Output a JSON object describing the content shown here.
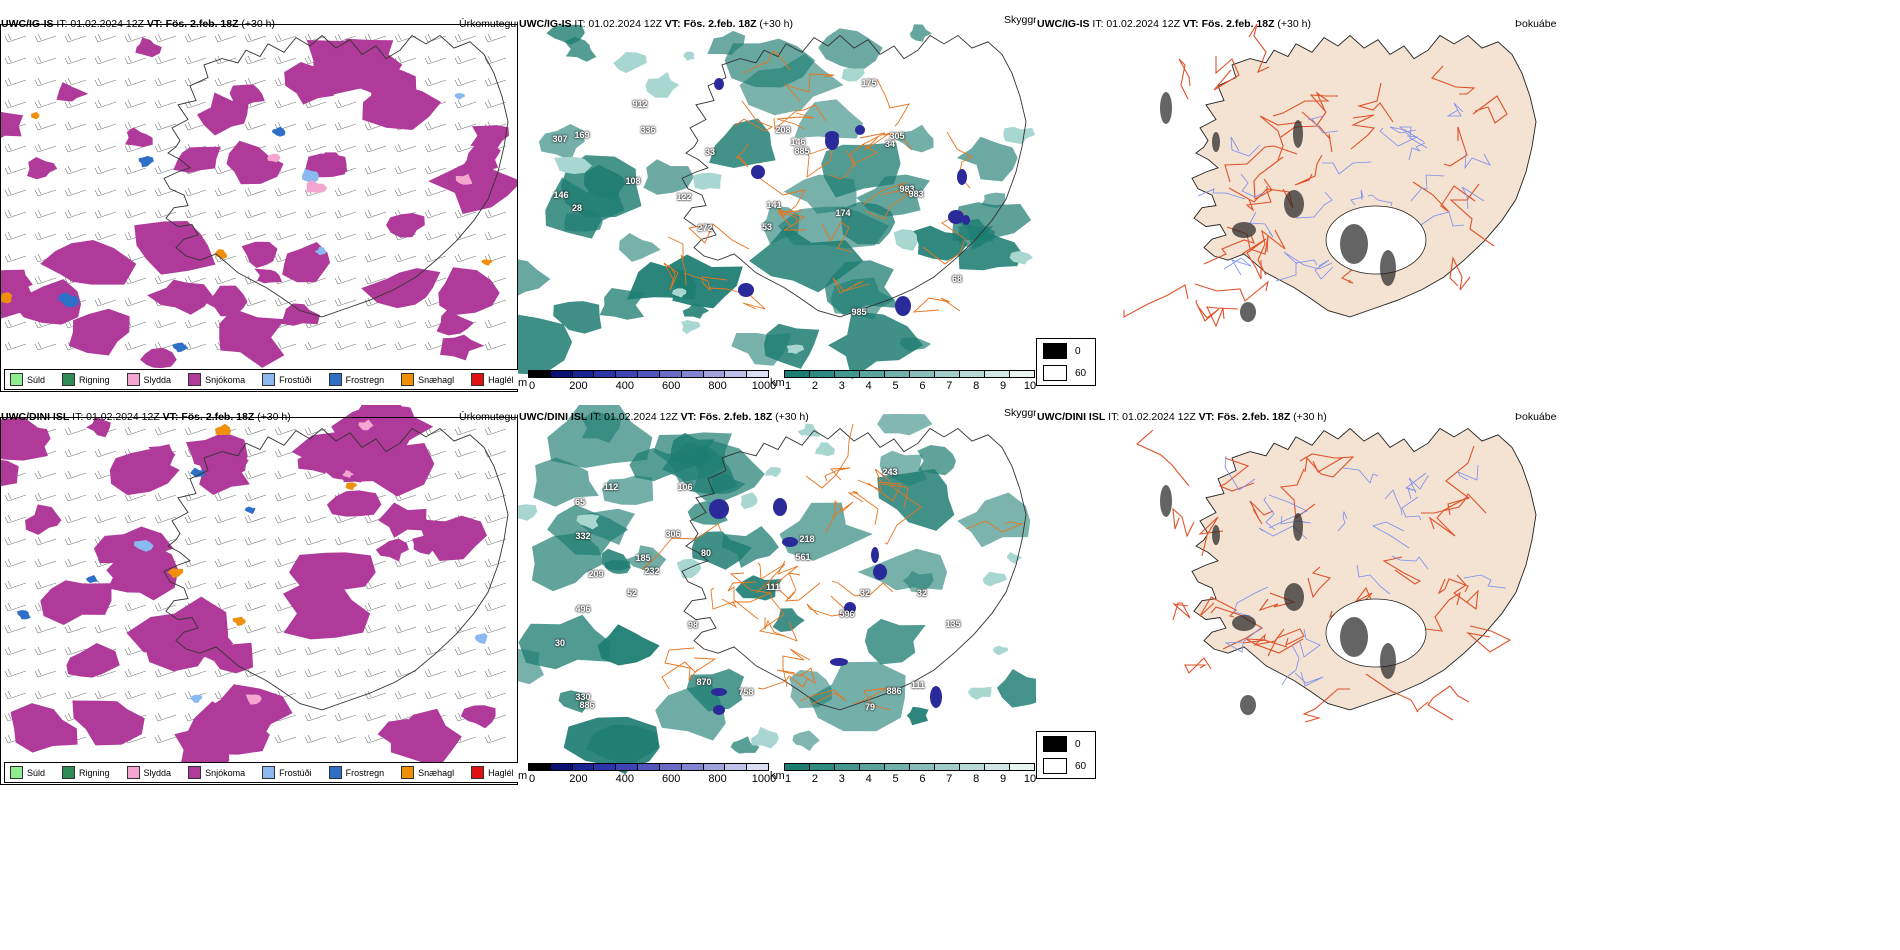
{
  "rows": [
    {
      "model": "UWC/IG-IS",
      "run": " IT: 01.02.2024 12Z ",
      "valid_label": "VT:",
      "valid": " Fös. 2.feb. 18Z",
      "lead": " (+30 h)",
      "precip": {
        "field": "Úrkomutegund"
      },
      "vis": {
        "field": "Skyggni",
        "peaks": [
          "307",
          "983",
          "985",
          "912",
          "272",
          "885",
          "305",
          "175",
          "34",
          "208",
          "141",
          "169",
          "122",
          "336",
          "174",
          "28",
          "108",
          "68",
          "33",
          "146",
          "146",
          "53",
          "983"
        ]
      },
      "fog": {
        "field": "Þokuábendi"
      }
    },
    {
      "model": "UWC/DINI ISL",
      "run": " IT: 01.02.2024 12Z ",
      "valid_label": "VT:",
      "valid": " Fös. 2.feb. 18Z",
      "lead": " (+30 h)",
      "precip": {
        "field": "Úrkomutegund"
      },
      "vis": {
        "field": "Skyggni",
        "peaks": [
          "30",
          "52",
          "561",
          "596",
          "886",
          "243",
          "135",
          "870",
          "185",
          "79",
          "112",
          "111",
          "218",
          "232",
          "306",
          "330",
          "886",
          "209",
          "98",
          "32",
          "106",
          "758",
          "332",
          "32",
          "111",
          "80",
          "65",
          "496"
        ]
      },
      "fog": {
        "field": "Þokuábendi"
      }
    }
  ],
  "precip_legend": [
    {
      "label": "Súld",
      "color": "#90ee90"
    },
    {
      "label": "Rigning",
      "color": "#2e8b57"
    },
    {
      "label": "Slydda",
      "color": "#f4a6d0"
    },
    {
      "label": "Snjókoma",
      "color": "#b03a9a"
    },
    {
      "label": "Frostúði",
      "color": "#8ab8f0"
    },
    {
      "label": "Frostregn",
      "color": "#2e6fc8"
    },
    {
      "label": "Snæhagl",
      "color": "#f0900a"
    },
    {
      "label": "Haglél",
      "color": "#e01010"
    }
  ],
  "height_bar": {
    "unit": "m",
    "ticks": [
      "0",
      "200",
      "400",
      "600",
      "800",
      "1000"
    ],
    "colors": [
      "#000000",
      "#0b1073",
      "#1a2591",
      "#2b35a8",
      "#3e44b5",
      "#5257bd",
      "#6a6cc8",
      "#8485d2",
      "#a1a2dc",
      "#c0c1e8",
      "#dcdcf2"
    ]
  },
  "km_bar": {
    "unit": "km",
    "ticks": [
      "1",
      "2",
      "3",
      "4",
      "5",
      "6",
      "7",
      "8",
      "9",
      "10"
    ],
    "colors": [
      "#1c7d74",
      "#2f8a82",
      "#449790",
      "#5aa49e",
      "#71b1ac",
      "#88beba",
      "#a0ccc8",
      "#b8d9d6",
      "#d0e6e4",
      "#e8f3f2"
    ]
  },
  "fog_legend": [
    {
      "label": "0",
      "color": "#000000"
    },
    {
      "label": "60",
      "color": "#ffffff"
    }
  ],
  "colors": {
    "snow": "#b03a9a",
    "rain_green": "#1e7d72",
    "land": "#f4e2d2",
    "roads": "#e0522a",
    "rivers": "#7a8ef0"
  }
}
